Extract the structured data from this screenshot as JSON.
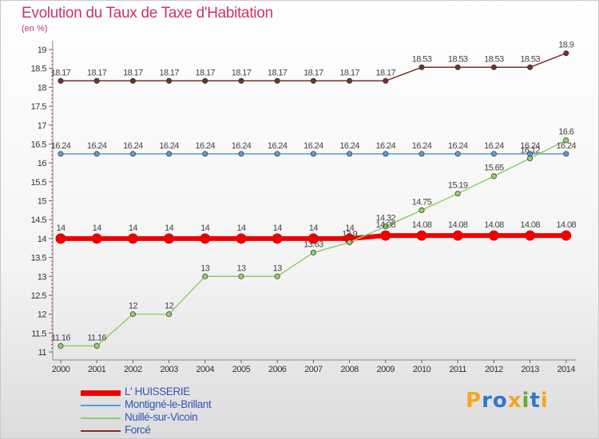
{
  "header": {
    "title": "Evolution du Taux de Taxe d'Habitation",
    "unit": "(en %)"
  },
  "brand": {
    "logo_text": "Proxiti",
    "letter_colors": [
      "#f5a623",
      "#3377cc",
      "#3377cc",
      "#f5a623",
      "#66aa33",
      "#3377cc",
      "#f5a623"
    ]
  },
  "chart_data": {
    "type": "line",
    "title": "Evolution du Taux de Taxe d'Habitation",
    "ylabel": "(en %)",
    "xlabel": "",
    "ylim": [
      11,
      19
    ],
    "y_ticks": [
      "11",
      "11.5",
      "12",
      "12.5",
      "13",
      "13.5",
      "14",
      "14.5",
      "15",
      "15.5",
      "16",
      "16.5",
      "17",
      "17.5",
      "18",
      "18.5",
      "19"
    ],
    "x": [
      "2000",
      "2001",
      "2002",
      "2003",
      "2004",
      "2005",
      "2006",
      "2007",
      "2008",
      "2009",
      "2010",
      "2011",
      "2012",
      "2013",
      "2014"
    ],
    "grid": false,
    "legend_position": "bottom-left",
    "series": [
      {
        "name": "L' HUISSERIE",
        "color": "#ee0000",
        "width": 6,
        "values": [
          14,
          14,
          14,
          14,
          14,
          14,
          14,
          14,
          14,
          14.08,
          14.08,
          14.08,
          14.08,
          14.08,
          14.08
        ],
        "labels": [
          "14",
          "14",
          "14",
          "14",
          "14",
          "14",
          "14",
          "14",
          "14",
          "14.08",
          "14.08",
          "14.08",
          "14.08",
          "14.08",
          "14.08"
        ]
      },
      {
        "name": "Montigné-le-Brillant",
        "color": "#5b9bd5",
        "width": 1.5,
        "values": [
          16.24,
          16.24,
          16.24,
          16.24,
          16.24,
          16.24,
          16.24,
          16.24,
          16.24,
          16.24,
          16.24,
          16.24,
          16.24,
          16.24,
          16.24
        ],
        "labels": [
          "16.24",
          "16.24",
          "16.24",
          "16.24",
          "16.24",
          "16.24",
          "16.24",
          "16.24",
          "16.24",
          "16.24",
          "16.24",
          "16.24",
          "16.24",
          "16.24",
          "16.24"
        ]
      },
      {
        "name": "Nuillé-sur-Vicoin",
        "color": "#8fd06a",
        "width": 1.5,
        "values": [
          11.16,
          11.16,
          12,
          12,
          13,
          13,
          13,
          13.63,
          13.9,
          14.32,
          14.75,
          15.19,
          15.65,
          16.12,
          16.6
        ],
        "labels": [
          "11.16",
          "11.16",
          "12",
          "12",
          "13",
          "13",
          "13",
          "13.63",
          "13.9",
          "14.32",
          "14.75",
          "15.19",
          "15.65",
          "16.12",
          "16.6"
        ]
      },
      {
        "name": "Forcé",
        "color": "#7a2e2e",
        "width": 1.5,
        "values": [
          18.17,
          18.17,
          18.17,
          18.17,
          18.17,
          18.17,
          18.17,
          18.17,
          18.17,
          18.17,
          18.53,
          18.53,
          18.53,
          18.53,
          18.9
        ],
        "labels": [
          "18.17",
          "18.17",
          "18.17",
          "18.17",
          "18.17",
          "18.17",
          "18.17",
          "18.17",
          "18.17",
          "18.17",
          "18.53",
          "18.53",
          "18.53",
          "18.53",
          "18.9"
        ]
      }
    ]
  }
}
